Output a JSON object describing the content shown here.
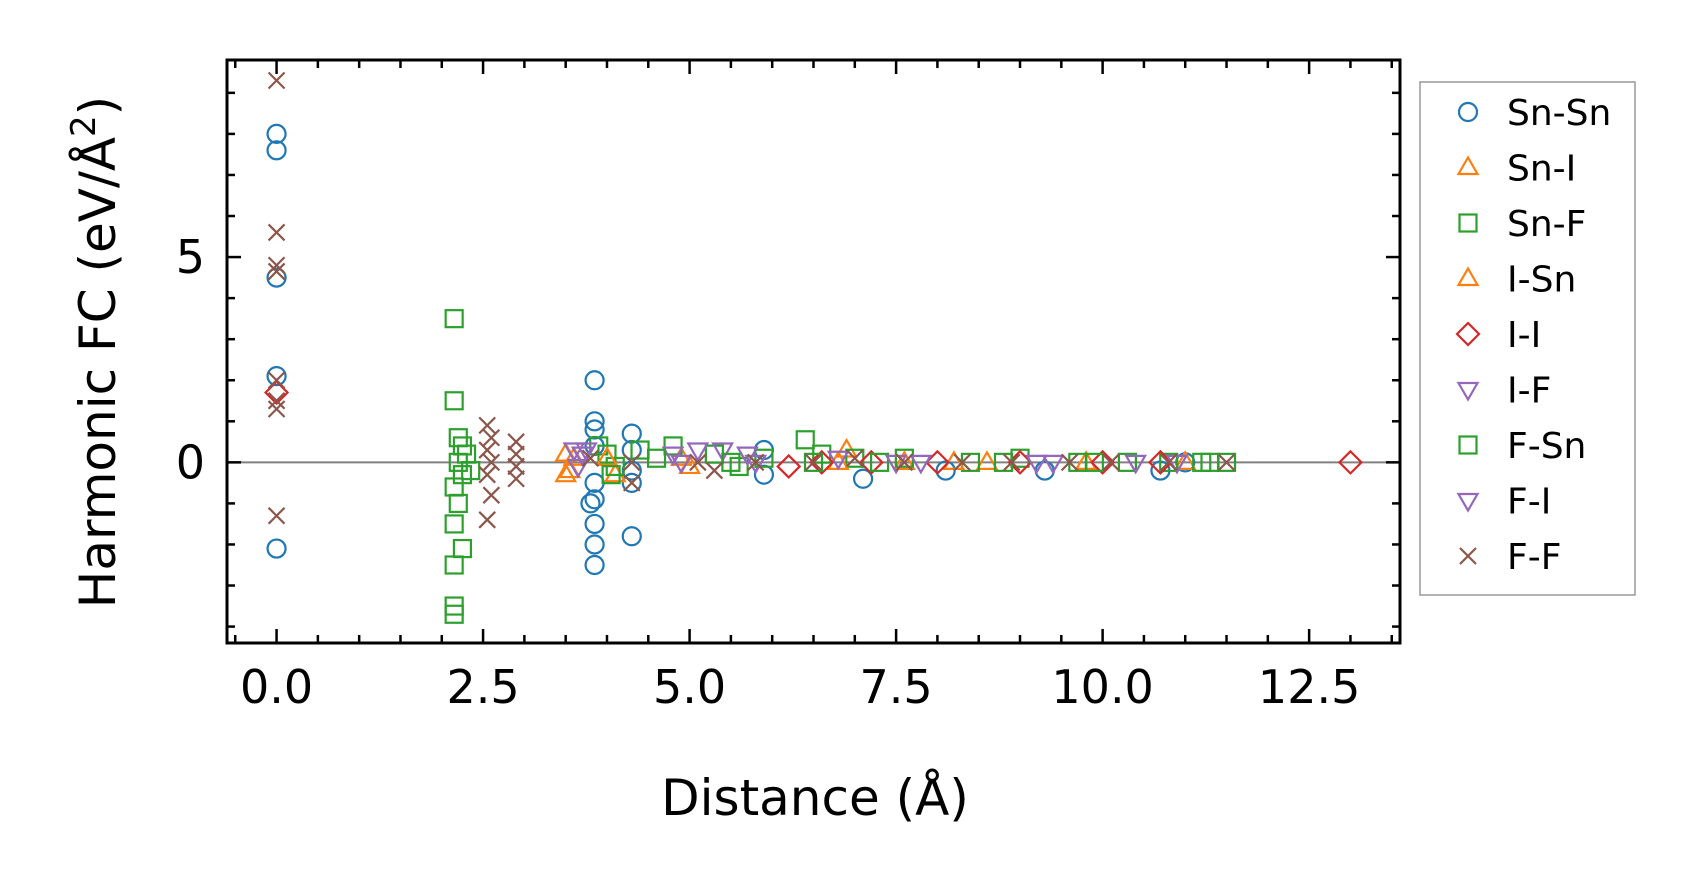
{
  "chart_data": {
    "type": "scatter",
    "xlabel": "Distance (Å)",
    "ylabel_main": "Harmonic FC (eV/Å",
    "ylabel_sup": "2",
    "ylabel_close": ")",
    "xlim": [
      -0.6,
      13.6
    ],
    "ylim": [
      -4.4,
      9.8
    ],
    "x_ticks": [
      0.0,
      2.5,
      5.0,
      7.5,
      10.0,
      12.5
    ],
    "x_tick_labels": [
      "0.0",
      "2.5",
      "5.0",
      "7.5",
      "10.0",
      "12.5"
    ],
    "y_ticks": [
      0,
      5
    ],
    "y_tick_labels": [
      "0",
      "5"
    ],
    "zero_line": true,
    "legend_position": "outside-right",
    "series": [
      {
        "name": "Sn-Sn",
        "color": "#1f77b4",
        "marker": "circle",
        "points": [
          [
            0,
            8.0
          ],
          [
            0,
            7.6
          ],
          [
            0,
            4.5
          ],
          [
            0,
            2.1
          ],
          [
            0,
            -2.1
          ],
          [
            3.85,
            2.0
          ],
          [
            3.85,
            1.0
          ],
          [
            3.85,
            0.8
          ],
          [
            3.85,
            0.4
          ],
          [
            3.85,
            -0.5
          ],
          [
            3.85,
            -0.9
          ],
          [
            3.8,
            -1.0
          ],
          [
            3.85,
            -1.5
          ],
          [
            3.85,
            -2.0
          ],
          [
            3.85,
            -2.5
          ],
          [
            4.3,
            0.7
          ],
          [
            4.3,
            0.3
          ],
          [
            4.3,
            -0.2
          ],
          [
            4.3,
            -0.5
          ],
          [
            4.3,
            -1.8
          ],
          [
            5.9,
            0.3
          ],
          [
            5.9,
            -0.3
          ],
          [
            7.1,
            -0.4
          ],
          [
            8.1,
            -0.2
          ],
          [
            9.3,
            -0.2
          ],
          [
            10.7,
            -0.2
          ],
          [
            11.0,
            0.0
          ]
        ]
      },
      {
        "name": "Sn-I",
        "color": "#ff7f0e",
        "marker": "triangle-up",
        "points": [
          [
            3.5,
            0.2
          ],
          [
            3.5,
            -0.3
          ],
          [
            3.6,
            0.1
          ],
          [
            4.1,
            -0.3
          ],
          [
            4.9,
            0.1
          ],
          [
            6.9,
            0.3
          ],
          [
            7.6,
            0.0
          ],
          [
            8.6,
            0.0
          ],
          [
            9.8,
            0.0
          ],
          [
            11.0,
            0.0
          ]
        ]
      },
      {
        "name": "Sn-F",
        "color": "#2ca02c",
        "marker": "square",
        "points": [
          [
            2.15,
            3.5
          ],
          [
            2.15,
            1.5
          ],
          [
            2.2,
            0.6
          ],
          [
            2.25,
            0.4
          ],
          [
            2.2,
            0.0
          ],
          [
            2.25,
            -0.3
          ],
          [
            2.15,
            -0.6
          ],
          [
            2.2,
            -1.0
          ],
          [
            2.15,
            -1.5
          ],
          [
            2.25,
            -2.1
          ],
          [
            2.15,
            -2.5
          ],
          [
            2.15,
            -3.5
          ],
          [
            2.15,
            -3.7
          ],
          [
            3.9,
            0.4
          ],
          [
            4.0,
            0.2
          ],
          [
            4.1,
            -0.1
          ],
          [
            4.4,
            0.3
          ],
          [
            4.8,
            0.4
          ],
          [
            5.3,
            0.2
          ],
          [
            5.6,
            -0.1
          ],
          [
            5.9,
            0.1
          ],
          [
            6.4,
            0.55
          ],
          [
            6.6,
            0.2
          ],
          [
            7.0,
            0.1
          ],
          [
            7.6,
            0.1
          ],
          [
            8.4,
            0.0
          ],
          [
            9.0,
            0.1
          ],
          [
            9.7,
            0.0
          ],
          [
            10.3,
            0.0
          ],
          [
            10.8,
            0.0
          ],
          [
            11.2,
            0.0
          ],
          [
            11.5,
            0.0
          ]
        ]
      },
      {
        "name": "I-Sn",
        "color": "#ff7f0e",
        "marker": "triangle-up",
        "points": [
          [
            3.55,
            -0.2
          ],
          [
            4.0,
            0.1
          ],
          [
            5.0,
            -0.1
          ],
          [
            6.8,
            0.0
          ],
          [
            8.2,
            0.0
          ]
        ]
      },
      {
        "name": "I-I",
        "color": "#d62728",
        "marker": "diamond",
        "points": [
          [
            0,
            1.7
          ],
          [
            6.2,
            -0.1
          ],
          [
            6.6,
            0.0
          ],
          [
            7.2,
            0.0
          ],
          [
            8.0,
            0.0
          ],
          [
            9.0,
            0.0
          ],
          [
            10.0,
            0.0
          ],
          [
            10.7,
            0.0
          ],
          [
            13.0,
            0.0
          ]
        ]
      },
      {
        "name": "I-F",
        "color": "#9467bd",
        "marker": "triangle-down",
        "points": [
          [
            3.6,
            0.3
          ],
          [
            3.7,
            0.2
          ],
          [
            3.75,
            0.3
          ],
          [
            4.8,
            0.2
          ],
          [
            5.1,
            0.3
          ],
          [
            5.4,
            0.3
          ],
          [
            5.7,
            0.2
          ],
          [
            6.8,
            0.1
          ],
          [
            7.8,
            0.0
          ],
          [
            9.4,
            0.0
          ],
          [
            10.4,
            0.0
          ]
        ]
      },
      {
        "name": "F-Sn",
        "color": "#2ca02c",
        "marker": "square",
        "points": [
          [
            2.3,
            0.2
          ],
          [
            2.35,
            -0.2
          ],
          [
            4.05,
            -0.3
          ],
          [
            4.6,
            0.1
          ],
          [
            5.5,
            0.0
          ],
          [
            6.5,
            0.0
          ],
          [
            7.3,
            0.0
          ],
          [
            8.8,
            0.0
          ],
          [
            9.9,
            0.0
          ],
          [
            11.3,
            0.0
          ]
        ]
      },
      {
        "name": "F-I",
        "color": "#9467bd",
        "marker": "triangle-down",
        "points": [
          [
            3.65,
            -0.1
          ],
          [
            4.9,
            0.0
          ],
          [
            5.8,
            0.0
          ],
          [
            7.5,
            0.0
          ],
          [
            9.2,
            0.0
          ],
          [
            10.9,
            0.0
          ]
        ]
      },
      {
        "name": "F-F",
        "color": "#8c564b",
        "marker": "x",
        "points": [
          [
            0,
            9.3
          ],
          [
            0,
            5.6
          ],
          [
            0,
            4.8
          ],
          [
            0,
            4.65
          ],
          [
            0,
            2.0
          ],
          [
            0,
            1.5
          ],
          [
            0,
            1.3
          ],
          [
            0,
            -1.3
          ],
          [
            2.55,
            0.9
          ],
          [
            2.6,
            0.6
          ],
          [
            2.55,
            0.3
          ],
          [
            2.6,
            0.0
          ],
          [
            2.55,
            -0.3
          ],
          [
            2.6,
            -0.8
          ],
          [
            2.55,
            -1.4
          ],
          [
            2.9,
            0.5
          ],
          [
            2.9,
            0.2
          ],
          [
            2.9,
            -0.1
          ],
          [
            2.9,
            -0.4
          ],
          [
            3.8,
            0.1
          ],
          [
            4.3,
            0.0
          ],
          [
            4.3,
            -0.5
          ],
          [
            5.1,
            0.0
          ],
          [
            5.3,
            -0.2
          ],
          [
            5.8,
            0.0
          ],
          [
            6.5,
            0.0
          ],
          [
            7.0,
            0.1
          ],
          [
            7.6,
            0.0
          ],
          [
            8.3,
            0.0
          ],
          [
            8.9,
            0.0
          ],
          [
            9.6,
            0.0
          ],
          [
            10.1,
            0.0
          ],
          [
            10.8,
            0.0
          ],
          [
            11.5,
            0.0
          ]
        ]
      }
    ]
  }
}
